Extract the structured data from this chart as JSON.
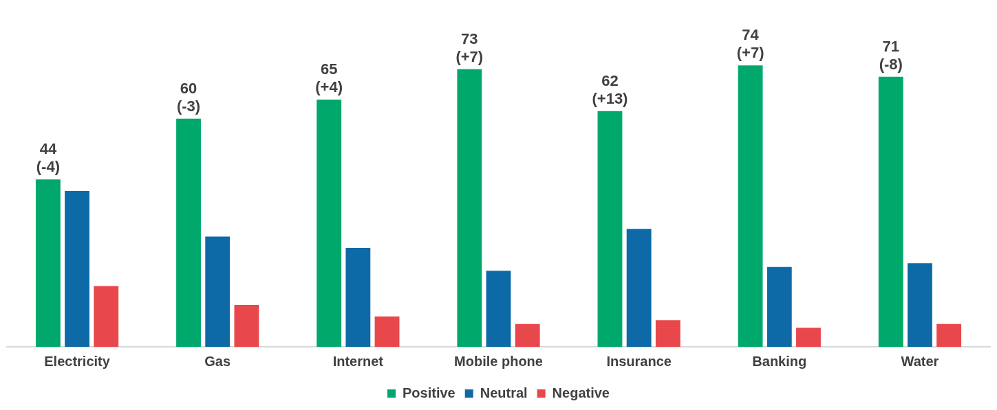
{
  "chart_data": {
    "type": "bar",
    "categories": [
      "Electricity",
      "Gas",
      "Internet",
      "Mobile phone",
      "Insurance",
      "Banking",
      "Water"
    ],
    "series": [
      {
        "name": "Positive",
        "color": "#00a96b",
        "values": [
          44,
          60,
          65,
          73,
          62,
          74,
          71
        ],
        "value_labels": [
          "44\n(-4)",
          "60\n(-3)",
          "65\n(+4)",
          "73\n(+7)",
          "62\n(+13)",
          "74\n(+7)",
          "71\n(-8)"
        ]
      },
      {
        "name": "Neutral",
        "color": "#0e6aa6",
        "values": [
          41,
          29,
          26,
          20,
          31,
          21,
          22
        ]
      },
      {
        "name": "Negative",
        "color": "#e8474b",
        "values": [
          16,
          11,
          8,
          6,
          7,
          5,
          6
        ]
      }
    ],
    "grid": false,
    "legend": "bottom"
  }
}
